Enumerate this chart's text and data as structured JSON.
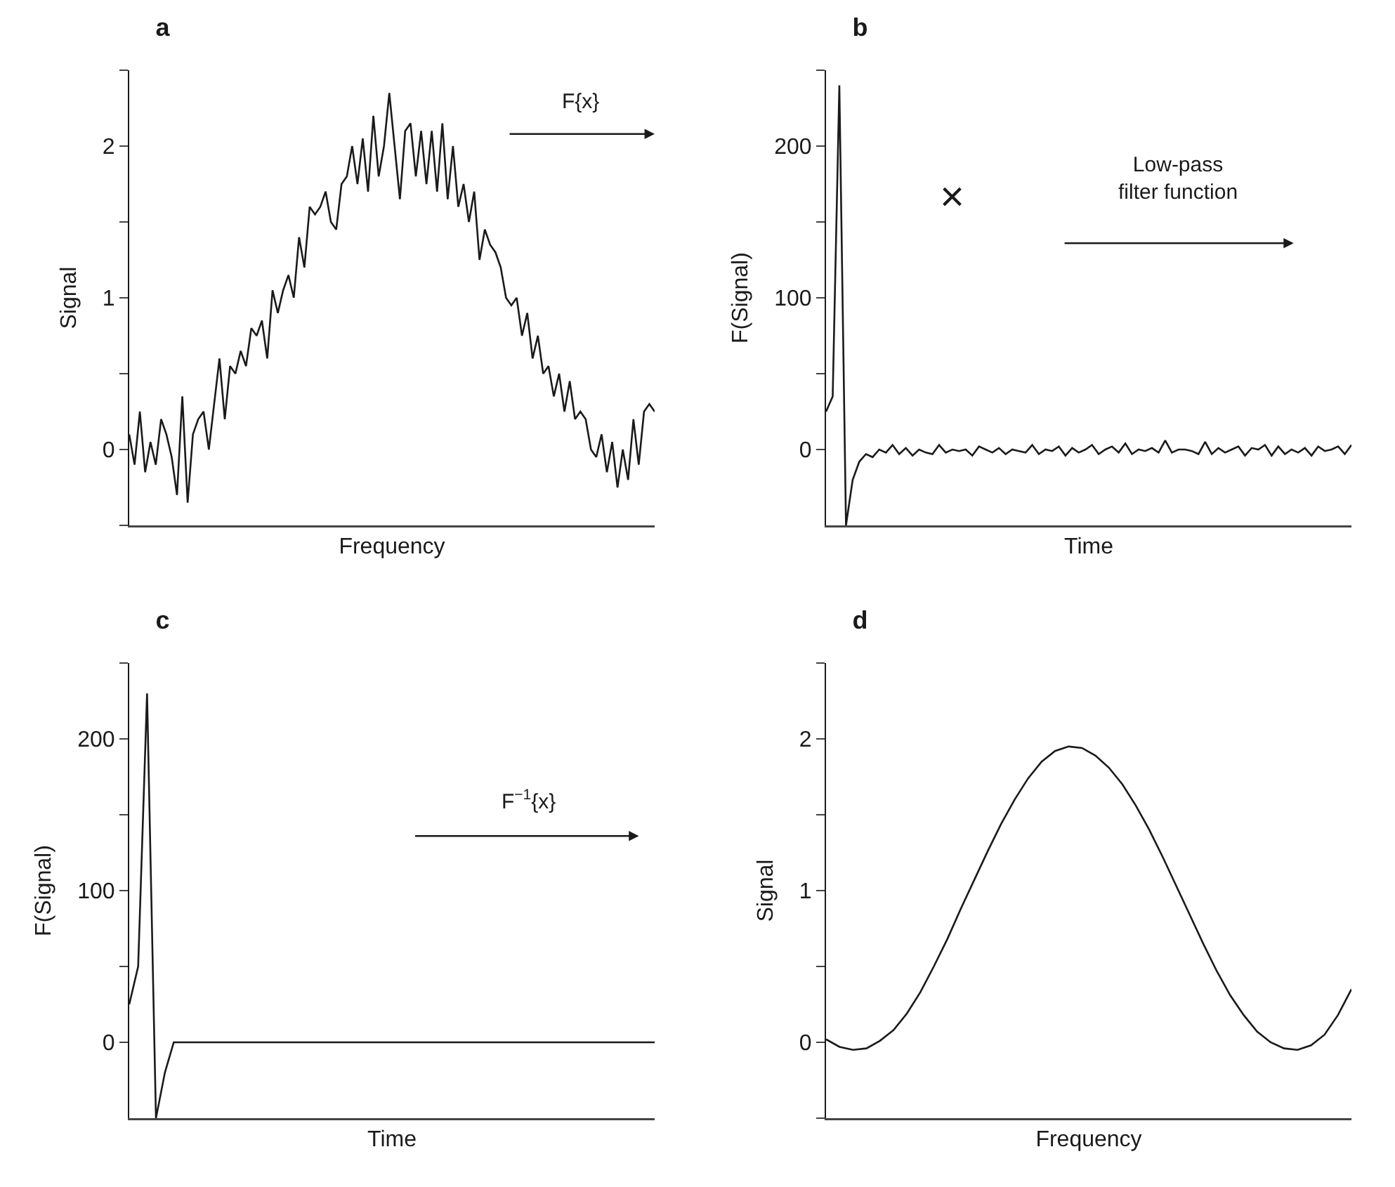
{
  "chart_data": [
    {
      "type": "line",
      "title": "a",
      "xlabel": "Frequency",
      "ylabel": "Signal",
      "tick_labels": "y",
      "ylim": [
        -0.5,
        2.5
      ],
      "yticks": [
        {
          "value": -0.5,
          "label": null
        },
        0,
        {
          "value": 0.5,
          "label": null
        },
        1,
        {
          "value": 1.5,
          "label": null
        },
        2,
        {
          "value": 2.5,
          "label": null
        }
      ],
      "annotations": [
        "F{x}"
      ],
      "categories": [
        null,
        null,
        null,
        null,
        null,
        null,
        null,
        null,
        null,
        null,
        null,
        null,
        null,
        null,
        null,
        null,
        null,
        null,
        null,
        null,
        null,
        null,
        null,
        null,
        null,
        null,
        null,
        null,
        null,
        null,
        null,
        null,
        null,
        null,
        null,
        null,
        null,
        null,
        null,
        null,
        null,
        null,
        null,
        null,
        null,
        null,
        null,
        null,
        null,
        null,
        null,
        null,
        null,
        null,
        null,
        null,
        null,
        null,
        null,
        null,
        null,
        null,
        null,
        null,
        null,
        null,
        null,
        null,
        null,
        null,
        null,
        null,
        null,
        null,
        null,
        null,
        null,
        null,
        null,
        null,
        null,
        null,
        null,
        null,
        null,
        null,
        null,
        null,
        null,
        null,
        null,
        null,
        null,
        null,
        null,
        null,
        null,
        null,
        null,
        null
      ],
      "series": [
        {
          "color": "#1a1a1a",
          "values": [
            0.1,
            -0.1,
            0.25,
            -0.15,
            0.05,
            -0.1,
            0.2,
            0.1,
            -0.05,
            -0.3,
            0.35,
            -0.35,
            0.1,
            0.2,
            0.25,
            0.0,
            0.3,
            0.6,
            0.2,
            0.55,
            0.5,
            0.65,
            0.55,
            0.8,
            0.75,
            0.85,
            0.6,
            1.05,
            0.9,
            1.05,
            1.15,
            1.0,
            1.4,
            1.2,
            1.6,
            1.55,
            1.6,
            1.7,
            1.5,
            1.45,
            1.75,
            1.8,
            2.0,
            1.75,
            2.05,
            1.7,
            2.2,
            1.8,
            2.0,
            2.35,
            2.0,
            1.65,
            2.1,
            2.15,
            1.8,
            2.1,
            1.75,
            2.1,
            1.7,
            2.15,
            1.65,
            2.0,
            1.6,
            1.75,
            1.5,
            1.7,
            1.25,
            1.45,
            1.35,
            1.3,
            1.2,
            1.0,
            0.95,
            1.0,
            0.75,
            0.9,
            0.6,
            0.75,
            0.5,
            0.55,
            0.35,
            0.5,
            0.25,
            0.45,
            0.2,
            0.25,
            0.2,
            0.0,
            -0.05,
            0.1,
            -0.15,
            0.05,
            -0.25,
            0.0,
            -0.2,
            0.2,
            -0.1,
            0.25,
            0.3,
            0.25
          ]
        }
      ]
    },
    {
      "type": "line",
      "title": "b",
      "xlabel": "Time",
      "ylabel": "F(Signal)",
      "tick_labels": "y",
      "ylim": [
        -50,
        250
      ],
      "yticks": [
        0,
        {
          "value": 50,
          "label": null
        },
        100,
        {
          "value": 150,
          "label": null
        },
        200,
        {
          "value": 250,
          "label": null
        }
      ],
      "annotations": [
        "×",
        "Low-pass\nfilter function"
      ],
      "categories": [
        null,
        null,
        null,
        null,
        null,
        null,
        null,
        null,
        null,
        null,
        null,
        null,
        null,
        null,
        null,
        null,
        null,
        null,
        null,
        null,
        null,
        null,
        null,
        null,
        null,
        null,
        null,
        null,
        null,
        null,
        null,
        null,
        null,
        null,
        null,
        null,
        null,
        null,
        null,
        null,
        null,
        null,
        null,
        null,
        null,
        null,
        null,
        null,
        null,
        null,
        null,
        null,
        null,
        null,
        null,
        null,
        null,
        null,
        null,
        null,
        null,
        null,
        null,
        null,
        null,
        null,
        null,
        null,
        null,
        null,
        null,
        null,
        null,
        null,
        null,
        null,
        null,
        null,
        null,
        null
      ],
      "series": [
        {
          "color": "#1a1a1a",
          "values": [
            25,
            35,
            240,
            -50,
            -20,
            -8,
            -3,
            -5,
            0,
            -2,
            3,
            -3,
            1,
            -4,
            0,
            -2,
            -3,
            3,
            -2,
            0,
            -1,
            0,
            -4,
            2,
            0,
            -2,
            1,
            -3,
            0,
            -1,
            -2,
            3,
            -3,
            0,
            -1,
            2,
            -4,
            1,
            -2,
            0,
            3,
            -3,
            0,
            2,
            -2,
            4,
            -3,
            0,
            -1,
            1,
            -2,
            6,
            -2,
            0,
            0,
            -1,
            -3,
            5,
            -3,
            1,
            -2,
            0,
            2,
            -4,
            1,
            0,
            3,
            -4,
            2,
            -3,
            0,
            -2,
            1,
            -4,
            2,
            -1,
            0,
            2,
            -3,
            3
          ]
        }
      ]
    },
    {
      "type": "line",
      "title": "c",
      "xlabel": "Time",
      "ylabel": "F(Signal)",
      "tick_labels": "y",
      "ylim": [
        -50,
        250
      ],
      "yticks": [
        0,
        {
          "value": 50,
          "label": null
        },
        100,
        {
          "value": 150,
          "label": null
        },
        200,
        {
          "value": 250,
          "label": null
        }
      ],
      "annotations": [
        "F$^{−1}${x}"
      ],
      "categories": [
        null,
        null,
        null,
        null,
        null,
        null,
        null,
        null,
        null,
        null,
        null,
        null,
        null,
        null,
        null,
        null,
        null,
        null,
        null,
        null,
        null,
        null,
        null,
        null,
        null,
        null,
        null,
        null,
        null,
        null,
        null,
        null,
        null,
        null,
        null,
        null,
        null,
        null,
        null,
        null,
        null,
        null,
        null,
        null,
        null,
        null,
        null,
        null,
        null,
        null,
        null,
        null,
        null,
        null,
        null,
        null,
        null,
        null,
        null,
        null
      ],
      "series": [
        {
          "color": "#1a1a1a",
          "values": [
            25,
            50,
            230,
            -50,
            -20,
            0,
            0,
            0,
            0,
            0,
            0,
            0,
            0,
            0,
            0,
            0,
            0,
            0,
            0,
            0,
            0,
            0,
            0,
            0,
            0,
            0,
            0,
            0,
            0,
            0,
            0,
            0,
            0,
            0,
            0,
            0,
            0,
            0,
            0,
            0,
            0,
            0,
            0,
            0,
            0,
            0,
            0,
            0,
            0,
            0,
            0,
            0,
            0,
            0,
            0,
            0,
            0,
            0,
            0,
            0
          ]
        }
      ]
    },
    {
      "type": "line",
      "title": "d",
      "xlabel": "Frequency",
      "ylabel": "Signal",
      "tick_labels": "y",
      "ylim": [
        -0.5,
        2.5
      ],
      "yticks": [
        {
          "value": -0.5,
          "label": null
        },
        0,
        {
          "value": 0.5,
          "label": null
        },
        1,
        {
          "value": 1.5,
          "label": null
        },
        2,
        {
          "value": 2.5,
          "label": null
        }
      ],
      "categories": [
        null,
        null,
        null,
        null,
        null,
        null,
        null,
        null,
        null,
        null,
        null,
        null,
        null,
        null,
        null,
        null,
        null,
        null,
        null,
        null,
        null,
        null,
        null,
        null,
        null,
        null,
        null,
        null,
        null,
        null,
        null,
        null,
        null,
        null,
        null,
        null,
        null,
        null,
        null,
        null
      ],
      "series": [
        {
          "color": "#1a1a1a",
          "values": [
            0.02,
            -0.03,
            -0.05,
            -0.04,
            0.01,
            0.08,
            0.19,
            0.33,
            0.5,
            0.68,
            0.88,
            1.07,
            1.26,
            1.44,
            1.6,
            1.74,
            1.85,
            1.92,
            1.95,
            1.94,
            1.89,
            1.81,
            1.7,
            1.56,
            1.4,
            1.22,
            1.03,
            0.84,
            0.65,
            0.47,
            0.31,
            0.18,
            0.07,
            0.0,
            -0.04,
            -0.05,
            -0.02,
            0.05,
            0.18,
            0.35
          ]
        }
      ]
    }
  ]
}
